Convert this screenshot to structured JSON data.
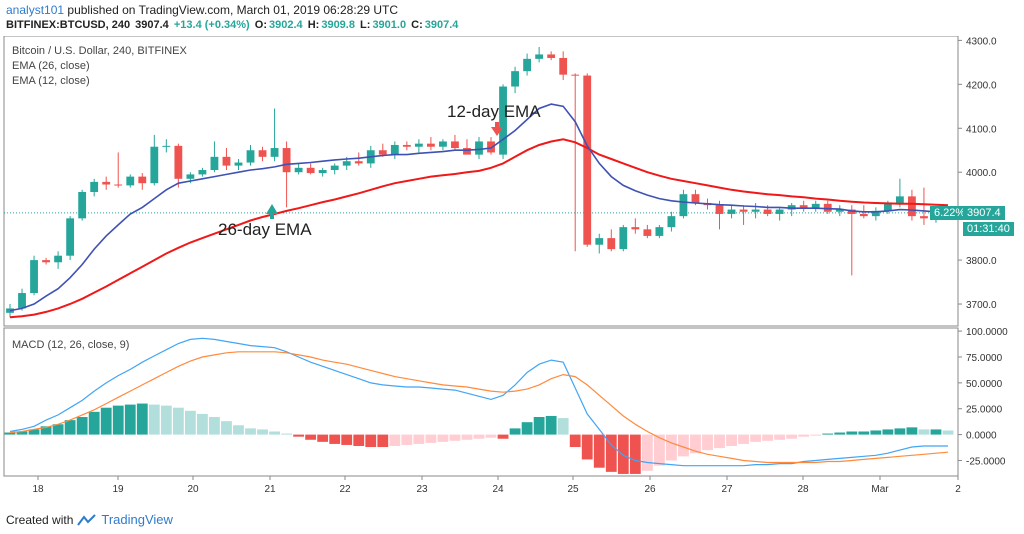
{
  "header": {
    "author": "analyst101",
    "published": "published on TradingView.com, March 01, 2019 06:28:29 UTC",
    "symbol": "BITFINEX:BTCUSD, 240",
    "last": "3907.4",
    "change": "+13.4 (+0.34%)",
    "o_label": "O:",
    "o": "3902.4",
    "h_label": "H:",
    "h": "3909.8",
    "l_label": "L:",
    "l": "3901.0",
    "c_label": "C:",
    "c": "3907.4"
  },
  "legend": {
    "title": "Bitcoin / U.S. Dollar, 240, BITFINEX",
    "ema26": "EMA (26, close)",
    "ema12": "EMA (12, close)",
    "macd": "MACD (12, 26, close, 9)"
  },
  "annotations": {
    "ema12": "12-day EMA",
    "ema26": "26-day EMA"
  },
  "tags": {
    "price": "3907.4",
    "pct": "6.22%",
    "countdown": "01:31:40"
  },
  "footer": {
    "created": "Created with",
    "brand": "TradingView"
  },
  "colors": {
    "up": "#26a69a",
    "down": "#ef5350",
    "ema12": "#3f51b5",
    "ema26": "#f01818",
    "macd_line": "#42a5f5",
    "signal_line": "#ff8a3d",
    "hist_up_strong": "#26a69a",
    "hist_up_weak": "#b2dfdb",
    "hist_down_strong": "#ef5350",
    "hist_down_weak": "#ffcdd2"
  },
  "chart_data": [
    {
      "type": "candlestick",
      "title": "Bitcoin / U.S. Dollar, 240, BITFINEX",
      "x_ticks": [
        "18",
        "19",
        "20",
        "21",
        "22",
        "23",
        "24",
        "25",
        "26",
        "27",
        "28",
        "Mar",
        "2"
      ],
      "y_ticks": [
        "3700.0",
        "3800.0",
        "3900.0",
        "4000.0",
        "4100.0",
        "4200.0",
        "4300.0"
      ],
      "ylim": [
        3650,
        4310
      ],
      "candles": [
        [
          3680,
          3700,
          3670,
          3690
        ],
        [
          3690,
          3735,
          3685,
          3725
        ],
        [
          3725,
          3810,
          3720,
          3800
        ],
        [
          3800,
          3805,
          3790,
          3795
        ],
        [
          3795,
          3820,
          3780,
          3810
        ],
        [
          3810,
          3900,
          3800,
          3895
        ],
        [
          3895,
          3960,
          3890,
          3955
        ],
        [
          3955,
          3985,
          3945,
          3978
        ],
        [
          3978,
          3990,
          3960,
          3972
        ],
        [
          3972,
          4045,
          3965,
          3970
        ],
        [
          3970,
          3995,
          3965,
          3990
        ],
        [
          3990,
          3998,
          3960,
          3975
        ],
        [
          3975,
          4085,
          3970,
          4058
        ],
        [
          4058,
          4075,
          4045,
          4060
        ],
        [
          4060,
          4065,
          3965,
          3985
        ],
        [
          3985,
          4000,
          3975,
          3995
        ],
        [
          3995,
          4010,
          3990,
          4005
        ],
        [
          4005,
          4070,
          4000,
          4035
        ],
        [
          4035,
          4055,
          4005,
          4015
        ],
        [
          4015,
          4030,
          4005,
          4022
        ],
        [
          4022,
          4062,
          4015,
          4050
        ],
        [
          4050,
          4058,
          4025,
          4035
        ],
        [
          4035,
          4145,
          4025,
          4055
        ],
        [
          4055,
          4070,
          3920,
          4000
        ],
        [
          4000,
          4020,
          3995,
          4010
        ],
        [
          4010,
          4020,
          3995,
          3998
        ],
        [
          3998,
          4010,
          3990,
          4005
        ],
        [
          4005,
          4020,
          3995,
          4015
        ],
        [
          4015,
          4035,
          4005,
          4025
        ],
        [
          4025,
          4045,
          4015,
          4020
        ],
        [
          4020,
          4060,
          4010,
          4050
        ],
        [
          4050,
          4065,
          4035,
          4040
        ],
        [
          4040,
          4070,
          4030,
          4062
        ],
        [
          4062,
          4070,
          4050,
          4058
        ],
        [
          4058,
          4075,
          4045,
          4065
        ],
        [
          4065,
          4080,
          4050,
          4058
        ],
        [
          4058,
          4075,
          4050,
          4070
        ],
        [
          4070,
          4085,
          4050,
          4055
        ],
        [
          4055,
          4075,
          4045,
          4040
        ],
        [
          4040,
          4080,
          4030,
          4070
        ],
        [
          4070,
          4080,
          4040,
          4045
        ],
        [
          4040,
          4200,
          4030,
          4195
        ],
        [
          4195,
          4240,
          4180,
          4230
        ],
        [
          4230,
          4270,
          4220,
          4258
        ],
        [
          4258,
          4285,
          4250,
          4268
        ],
        [
          4268,
          4275,
          4255,
          4260
        ],
        [
          4260,
          4275,
          4210,
          4222
        ],
        [
          4222,
          4225,
          3820,
          4220
        ],
        [
          4220,
          4225,
          3830,
          3835
        ],
        [
          3835,
          3860,
          3815,
          3850
        ],
        [
          3850,
          3870,
          3820,
          3825
        ],
        [
          3825,
          3880,
          3820,
          3875
        ],
        [
          3875,
          3895,
          3860,
          3870
        ],
        [
          3870,
          3880,
          3850,
          3855
        ],
        [
          3855,
          3880,
          3850,
          3875
        ],
        [
          3875,
          3910,
          3865,
          3900
        ],
        [
          3900,
          3960,
          3895,
          3950
        ],
        [
          3950,
          3960,
          3925,
          3930
        ],
        [
          3930,
          3940,
          3915,
          3925
        ],
        [
          3925,
          3935,
          3870,
          3905
        ],
        [
          3905,
          3925,
          3895,
          3915
        ],
        [
          3915,
          3925,
          3880,
          3910
        ],
        [
          3910,
          3930,
          3895,
          3915
        ],
        [
          3915,
          3925,
          3900,
          3905
        ],
        [
          3905,
          3920,
          3890,
          3915
        ],
        [
          3915,
          3930,
          3900,
          3925
        ],
        [
          3925,
          3935,
          3910,
          3918
        ],
        [
          3918,
          3935,
          3910,
          3928
        ],
        [
          3928,
          3935,
          3905,
          3910
        ],
        [
          3910,
          3925,
          3900,
          3915
        ],
        [
          3915,
          3925,
          3765,
          3905
        ],
        [
          3905,
          3925,
          3895,
          3900
        ],
        [
          3900,
          3920,
          3890,
          3912
        ],
        [
          3912,
          3935,
          3905,
          3928
        ],
        [
          3928,
          3985,
          3920,
          3945
        ],
        [
          3945,
          3960,
          3890,
          3900
        ],
        [
          3900,
          3965,
          3880,
          3895
        ],
        [
          3895,
          3910,
          3885,
          3898
        ],
        [
          3898,
          3910,
          3895,
          3907
        ]
      ],
      "series": [
        {
          "name": "EMA (12, close)",
          "values": [
            3685,
            3690,
            3700,
            3718,
            3735,
            3760,
            3790,
            3825,
            3855,
            3880,
            3905,
            3920,
            3940,
            3960,
            3975,
            3980,
            3985,
            3990,
            3995,
            4000,
            4005,
            4008,
            4012,
            4018,
            4020,
            4022,
            4025,
            4028,
            4030,
            4032,
            4035,
            4038,
            4040,
            4040,
            4043,
            4045,
            4047,
            4050,
            4050,
            4052,
            4055,
            4075,
            4095,
            4120,
            4145,
            4155,
            4150,
            4115,
            4060,
            4020,
            3990,
            3970,
            3958,
            3948,
            3940,
            3935,
            3932,
            3930,
            3928,
            3926,
            3925,
            3923,
            3922,
            3920,
            3920,
            3918,
            3918,
            3918,
            3917,
            3916,
            3912,
            3910,
            3910,
            3912,
            3915,
            3914,
            3912,
            3910,
            3909
          ]
        },
        {
          "name": "EMA (26, close)",
          "values": [
            3670,
            3672,
            3676,
            3682,
            3690,
            3700,
            3712,
            3726,
            3740,
            3755,
            3770,
            3785,
            3800,
            3815,
            3828,
            3840,
            3850,
            3860,
            3870,
            3880,
            3890,
            3898,
            3905,
            3912,
            3918,
            3925,
            3932,
            3938,
            3945,
            3952,
            3960,
            3968,
            3975,
            3980,
            3985,
            3990,
            3993,
            3996,
            4000,
            4003,
            4010,
            4020,
            4035,
            4050,
            4062,
            4070,
            4075,
            4068,
            4055,
            4040,
            4030,
            4020,
            4010,
            4000,
            3992,
            3985,
            3980,
            3975,
            3970,
            3965,
            3960,
            3956,
            3953,
            3950,
            3948,
            3945,
            3943,
            3940,
            3938,
            3935,
            3933,
            3931,
            3930,
            3929,
            3928,
            3928,
            3927,
            3926,
            3925
          ]
        }
      ]
    },
    {
      "type": "macd",
      "title": "MACD (12, 26, close, 9)",
      "y_ticks": [
        "100.0000",
        "75.0000",
        "50.0000",
        "25.0000",
        "0.0000",
        "-25.0000"
      ],
      "ylim": [
        -40,
        103
      ],
      "macd": [
        3,
        5,
        8,
        14,
        19,
        26,
        33,
        42,
        50,
        57,
        63,
        70,
        76,
        82,
        88,
        92,
        93,
        92,
        90,
        88,
        86,
        85,
        84,
        80,
        75,
        70,
        66,
        62,
        58,
        54,
        50,
        48,
        47,
        46,
        46,
        45,
        44,
        43,
        40,
        37,
        34,
        38,
        48,
        60,
        68,
        72,
        70,
        45,
        20,
        5,
        -10,
        -20,
        -25,
        -27,
        -28,
        -29,
        -30,
        -30,
        -30,
        -30,
        -30,
        -30,
        -29,
        -29,
        -28,
        -28,
        -26,
        -25,
        -24,
        -23,
        -22,
        -21,
        -20,
        -18,
        -15,
        -12,
        -11,
        -11,
        -11
      ],
      "signal": [
        2,
        3,
        5,
        7,
        10,
        14,
        19,
        24,
        30,
        36,
        42,
        48,
        54,
        60,
        66,
        71,
        75,
        77,
        79,
        80,
        80,
        80,
        80,
        79,
        77,
        75,
        72,
        70,
        68,
        65,
        62,
        59,
        56,
        54,
        52,
        50,
        48,
        47,
        46,
        44,
        42,
        41,
        42,
        44,
        48,
        54,
        58,
        56,
        48,
        38,
        28,
        18,
        10,
        3,
        -3,
        -8,
        -12,
        -16,
        -19,
        -21,
        -23,
        -25,
        -26,
        -27,
        -27,
        -27,
        -27,
        -27,
        -26,
        -26,
        -25,
        -24,
        -23,
        -22,
        -21,
        -20,
        -19,
        -18,
        -17
      ],
      "histogram": [
        2,
        3,
        5,
        8,
        10,
        14,
        17,
        22,
        26,
        28,
        29,
        30,
        29,
        28,
        26,
        23,
        20,
        17,
        13,
        9,
        6,
        5,
        3,
        1,
        -2,
        -5,
        -7,
        -9,
        -10,
        -11,
        -12,
        -12,
        -11,
        -10,
        -9,
        -8,
        -7,
        -6,
        -5,
        -4,
        -3,
        -4,
        6,
        12,
        17,
        18,
        16,
        -12,
        -24,
        -32,
        -36,
        -38,
        -38,
        -35,
        -30,
        -25,
        -21,
        -18,
        -15,
        -13,
        -11,
        -9,
        -7,
        -6,
        -5,
        -4,
        -2,
        -1,
        1,
        2,
        3,
        3,
        4,
        5,
        6,
        7,
        5,
        5,
        4
      ]
    }
  ]
}
